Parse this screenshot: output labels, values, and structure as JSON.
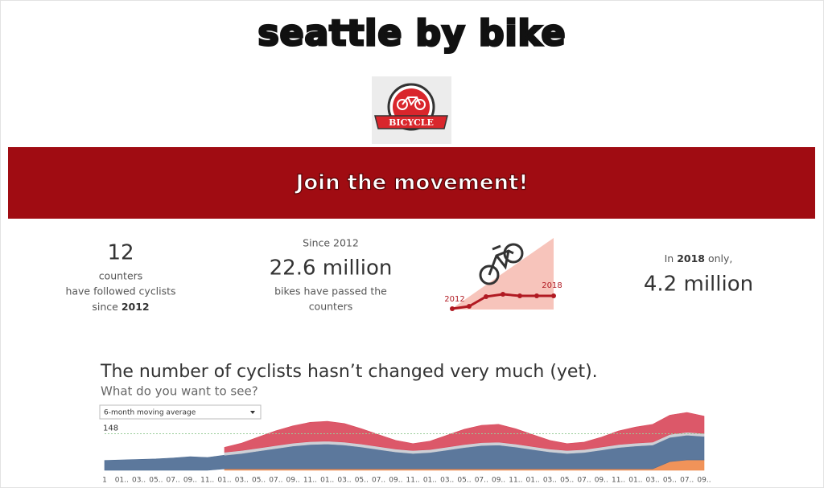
{
  "header": {
    "title": "seattle by bike",
    "logo_text": "BICYCLE",
    "banner": "Join the movement!"
  },
  "stats": {
    "counters": {
      "number": "12",
      "line1": "counters",
      "line2": "have followed cyclists",
      "since": "since ",
      "year": "2012"
    },
    "total": {
      "since": "Since 2012",
      "number": "22.6 million",
      "line1": "bikes have passed the",
      "line2": "counters"
    },
    "trend": {
      "start": "2012",
      "end": "2018"
    },
    "year": {
      "prefix": "In ",
      "year": "2018",
      "suffix": " only,",
      "number": "4.2 million"
    }
  },
  "chart_data": {
    "type": "area",
    "stacked": true,
    "title": "The number of cyclists hasn’t changed very much (yet).",
    "subtitle": "What do you want to see?",
    "selector": "6-month moving average",
    "categories": [
      "1",
      "01..",
      "03..",
      "05..",
      "07..",
      "09..",
      "11..",
      "01..",
      "03..",
      "05..",
      "07..",
      "09..",
      "11..",
      "01..",
      "03..",
      "05..",
      "07..",
      "09..",
      "11..",
      "01..",
      "03..",
      "05..",
      "07..",
      "09..",
      "11..",
      "01..",
      "03..",
      "05..",
      "07..",
      "09..",
      "11..",
      "01..",
      "03..",
      "05..",
      "07..",
      "09.."
    ],
    "series": [
      {
        "color": "#f08a4b",
        "values": [
          null,
          null,
          null,
          null,
          null,
          null,
          null,
          6,
          6,
          6,
          6,
          6,
          6,
          6,
          6,
          6,
          6,
          6,
          6,
          6,
          6,
          6,
          6,
          6,
          6,
          6,
          6,
          6,
          6,
          6,
          6,
          6,
          6,
          35,
          42,
          42
        ]
      },
      {
        "color": "#4e6d94",
        "values": [
          40,
          42,
          44,
          46,
          50,
          55,
          52,
          55,
          62,
          72,
          82,
          92,
          98,
          100,
          96,
          88,
          78,
          68,
          62,
          66,
          76,
          86,
          94,
          96,
          88,
          78,
          68,
          62,
          66,
          76,
          86,
          92,
          96,
          98,
          100,
          95
        ]
      },
      {
        "color": "#c9ccd3",
        "values": [
          null,
          null,
          null,
          null,
          null,
          null,
          null,
          12,
          12,
          12,
          12,
          12,
          12,
          12,
          12,
          12,
          12,
          12,
          12,
          12,
          12,
          12,
          12,
          12,
          12,
          12,
          12,
          12,
          12,
          12,
          12,
          12,
          12,
          12,
          12,
          12
        ]
      },
      {
        "color": "#d94a5c",
        "values": [
          null,
          null,
          null,
          null,
          null,
          null,
          null,
          20,
          30,
          45,
          60,
          70,
          78,
          80,
          75,
          62,
          48,
          35,
          28,
          34,
          48,
          62,
          70,
          72,
          62,
          48,
          35,
          28,
          30,
          40,
          55,
          65,
          72,
          78,
          80,
          70
        ]
      }
    ],
    "ylim": [
      0,
      260
    ],
    "reference_line": 148
  }
}
